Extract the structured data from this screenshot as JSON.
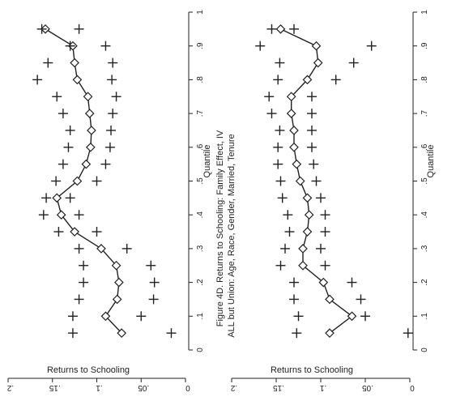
{
  "chart_data": [
    {
      "type": "line",
      "ylabel": "Returns to Schooling",
      "xlabel": "Quantile",
      "xlim": [
        0,
        1
      ],
      "ylim": [
        0,
        0.2
      ],
      "x_ticks": [
        0,
        0.1,
        0.2,
        0.3,
        0.4,
        0.5,
        0.6,
        0.7,
        0.8,
        0.9,
        1
      ],
      "x_tick_labels": [
        "0",
        ".1",
        ".2",
        ".3",
        ".4",
        ".5",
        ".6",
        ".7",
        ".8",
        ".9",
        "1"
      ],
      "y_ticks": [
        0,
        0.05,
        0.1,
        0.15,
        0.2
      ],
      "y_tick_labels": [
        "0",
        ".05",
        ".1",
        ".15",
        ".2"
      ],
      "orientation": "rotated-90-clockwise",
      "grid": false,
      "x": [
        0.05,
        0.1,
        0.15,
        0.2,
        0.25,
        0.3,
        0.35,
        0.4,
        0.45,
        0.5,
        0.55,
        0.6,
        0.65,
        0.7,
        0.75,
        0.8,
        0.85,
        0.9,
        0.95
      ],
      "series": [
        {
          "role": "estimate",
          "marker": "diamond",
          "values": [
            0.072,
            0.09,
            0.077,
            0.075,
            0.078,
            0.095,
            0.125,
            0.14,
            0.145,
            0.122,
            0.112,
            0.107,
            0.106,
            0.108,
            0.11,
            0.122,
            0.125,
            0.127,
            0.158
          ]
        },
        {
          "role": "upper-bound",
          "marker": "plus",
          "values": [
            0.127,
            0.127,
            0.12,
            0.115,
            0.115,
            0.12,
            0.143,
            0.16,
            0.157,
            0.146,
            0.138,
            0.132,
            0.13,
            0.138,
            0.145,
            0.167,
            0.155,
            0.13,
            0.162
          ]
        },
        {
          "role": "lower-bound",
          "marker": "plus",
          "values": [
            0.016,
            0.05,
            0.036,
            0.035,
            0.039,
            0.066,
            0.1,
            0.12,
            0.13,
            0.1,
            0.09,
            0.085,
            0.084,
            0.082,
            0.078,
            0.083,
            0.082,
            0.09,
            0.12
          ]
        }
      ]
    },
    {
      "type": "line",
      "title": "Figure 4D. Returns to Schooling: Family Effect, IV",
      "subtitle": "ALL but Union: Age, Race, Gender, Married, Tenure",
      "ylabel": "Returns to Schooling",
      "xlabel": "Quantile",
      "xlim": [
        0,
        1
      ],
      "ylim": [
        0,
        0.2
      ],
      "x_ticks": [
        0,
        0.1,
        0.2,
        0.3,
        0.4,
        0.5,
        0.6,
        0.7,
        0.8,
        0.9,
        1
      ],
      "x_tick_labels": [
        "0",
        ".1",
        ".2",
        ".3",
        ".4",
        ".5",
        ".6",
        ".7",
        ".8",
        ".9",
        "1"
      ],
      "y_ticks": [
        0,
        0.05,
        0.1,
        0.15,
        0.2
      ],
      "y_tick_labels": [
        "0",
        ".05",
        ".1",
        ".15",
        ".2"
      ],
      "orientation": "rotated-90-clockwise",
      "grid": false,
      "x": [
        0.05,
        0.1,
        0.15,
        0.2,
        0.25,
        0.3,
        0.35,
        0.4,
        0.45,
        0.5,
        0.55,
        0.6,
        0.65,
        0.7,
        0.75,
        0.8,
        0.85,
        0.9,
        0.95
      ],
      "series": [
        {
          "role": "estimate",
          "marker": "diamond",
          "values": [
            0.09,
            0.065,
            0.09,
            0.097,
            0.12,
            0.12,
            0.115,
            0.113,
            0.115,
            0.123,
            0.127,
            0.13,
            0.13,
            0.133,
            0.133,
            0.115,
            0.103,
            0.105,
            0.145
          ]
        },
        {
          "role": "upper-bound",
          "marker": "plus",
          "values": [
            0.127,
            0.125,
            0.13,
            0.13,
            0.145,
            0.14,
            0.135,
            0.137,
            0.143,
            0.145,
            0.148,
            0.148,
            0.146,
            0.155,
            0.158,
            0.148,
            0.146,
            0.168,
            0.155
          ]
        },
        {
          "role": "lower-bound",
          "marker": "plus",
          "values": [
            0.002,
            0.05,
            0.055,
            0.065,
            0.095,
            0.1,
            0.095,
            0.095,
            0.1,
            0.105,
            0.108,
            0.11,
            0.11,
            0.11,
            0.11,
            0.083,
            0.063,
            0.043,
            0.13
          ]
        }
      ]
    }
  ]
}
